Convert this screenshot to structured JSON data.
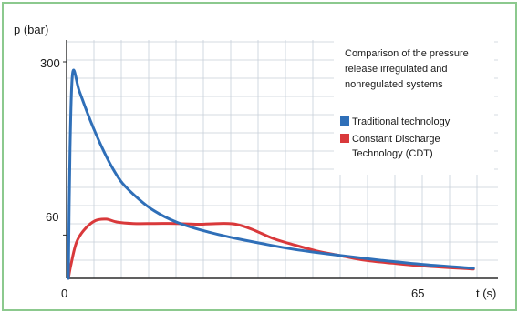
{
  "chart_data": {
    "type": "line",
    "title": "Comparison of the pressure release irregulated and nonregulated systems",
    "title_lines": [
      "Comparison of the pressure",
      "release irregulated and",
      "nonregulated systems"
    ],
    "ylabel": "p (bar)",
    "xlabel": "t (s)",
    "y_ticks": [
      {
        "value": 300,
        "label": "300"
      },
      {
        "value": 60,
        "label": "60"
      }
    ],
    "x_ticks": [
      {
        "value": 0,
        "label": "0"
      },
      {
        "value": 65,
        "label": "65"
      }
    ],
    "xlim": [
      0,
      75
    ],
    "ylim": [
      0,
      325
    ],
    "grid": true,
    "legend_position": "top-right",
    "series": [
      {
        "name": "Traditional technology",
        "name_lines": [
          "Traditional technology"
        ],
        "color": "#2f6fb8",
        "x": [
          0,
          0.3,
          0.8,
          2,
          4,
          6,
          8,
          10,
          13,
          16,
          20,
          25,
          30,
          36,
          42,
          50,
          58,
          66,
          75
        ],
        "y": [
          0,
          180,
          285,
          260,
          220,
          185,
          155,
          132,
          110,
          93,
          78,
          66,
          57,
          48,
          40,
          32,
          25,
          19,
          14
        ]
      },
      {
        "name": "Constant Discharge Technology (CDT)",
        "name_lines": [
          "Constant Discharge",
          "Technology (CDT)"
        ],
        "color": "#d9393b",
        "x": [
          0,
          0.5,
          1.5,
          3,
          5,
          7,
          9,
          12,
          16,
          20,
          24,
          28,
          31,
          34,
          38,
          42,
          46,
          50,
          55,
          60,
          66,
          75
        ],
        "y": [
          0,
          20,
          50,
          68,
          80,
          82,
          78,
          76,
          76,
          76,
          75,
          76,
          75,
          68,
          55,
          46,
          38,
          32,
          25,
          21,
          17,
          13
        ]
      }
    ]
  }
}
